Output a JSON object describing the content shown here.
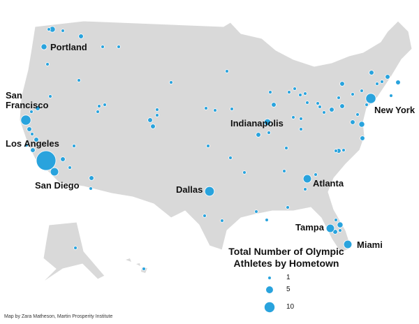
{
  "legend": {
    "title": "Total Number of Olympic Athletes by Hometown",
    "sizes": [
      1,
      5,
      10
    ]
  },
  "cities": [
    {
      "label": "Portland",
      "value": 3
    },
    {
      "label": "San Francisco",
      "value": 9
    },
    {
      "label": "Los Angeles",
      "value": 34
    },
    {
      "label": "San Diego",
      "value": 6
    },
    {
      "label": "Dallas",
      "value": 8
    },
    {
      "label": "Indianapolis",
      "value": 4
    },
    {
      "label": "Atlanta",
      "value": 6
    },
    {
      "label": "Tampa",
      "value": 6
    },
    {
      "label": "Miami",
      "value": 6
    },
    {
      "label": "New York",
      "value": 9
    }
  ],
  "bubbles": [
    3,
    1,
    1,
    2,
    1,
    1,
    1,
    1,
    1,
    2,
    1,
    2,
    1,
    2,
    2,
    1,
    2,
    1,
    2,
    1,
    1,
    1,
    1,
    2,
    2,
    1,
    1,
    1,
    1,
    1,
    1,
    1,
    1,
    1,
    1,
    2,
    1,
    2,
    1,
    1,
    1,
    1,
    1,
    1,
    1,
    1,
    1,
    1,
    1,
    1,
    1,
    2,
    1,
    2,
    2,
    1,
    1,
    1,
    1,
    1,
    1,
    2,
    2,
    1,
    2,
    2,
    3,
    1,
    2,
    1,
    1,
    1,
    1,
    1,
    1,
    1,
    1,
    1,
    3,
    1,
    2,
    1,
    1,
    1,
    2,
    1,
    1
  ],
  "credit": "Map by Zara Matheson, Martin Prosperity Institute"
}
